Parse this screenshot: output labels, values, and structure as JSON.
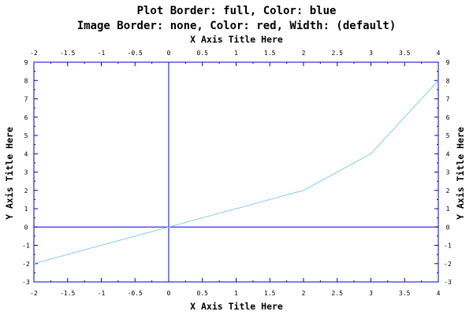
{
  "chart_data": {
    "type": "line",
    "title_line1": "Plot Border: full, Color: blue",
    "title_line2": "Image Border: none, Color: red, Width: (default)",
    "xlabel": "X Axis Title Here",
    "ylabel": "Y Axis Title Here",
    "xlim": [
      -2,
      4
    ],
    "ylim": [
      -3,
      9
    ],
    "xticks": [
      "-2",
      "-1.5",
      "-1",
      "-0.5",
      "0",
      "0.5",
      "1",
      "1.5",
      "2",
      "2.5",
      "3",
      "3.5",
      "4"
    ],
    "yticks": [
      "-3",
      "-2",
      "-1",
      "0",
      "1",
      "2",
      "3",
      "4",
      "5",
      "6",
      "7",
      "8",
      "9"
    ],
    "x": [
      -2,
      0,
      2,
      3,
      4
    ],
    "y": [
      -2,
      0,
      2,
      4,
      8
    ],
    "colors": {
      "border": "#0000cc",
      "line": "#87ceeb",
      "zero_lines": "#0000cc",
      "text": "#000000"
    }
  }
}
